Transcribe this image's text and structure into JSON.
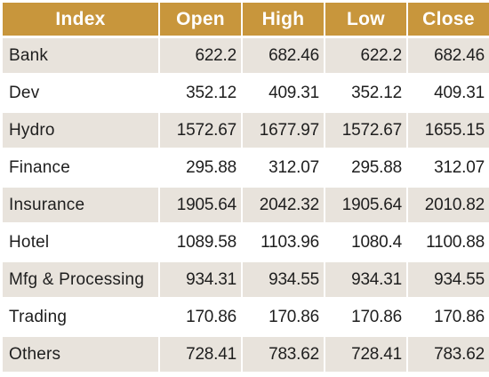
{
  "table": {
    "headers": [
      "Index",
      "Open",
      "High",
      "Low",
      "Close"
    ],
    "rows": [
      [
        "Bank",
        "622.2",
        "682.46",
        "622.2",
        "682.46"
      ],
      [
        "Dev",
        "352.12",
        "409.31",
        "352.12",
        "409.31"
      ],
      [
        "Hydro",
        "1572.67",
        "1677.97",
        "1572.67",
        "1655.15"
      ],
      [
        "Finance",
        "295.88",
        "312.07",
        "295.88",
        "312.07"
      ],
      [
        "Insurance",
        "1905.64",
        "2042.32",
        "1905.64",
        "2010.82"
      ],
      [
        "Hotel",
        "1089.58",
        "1103.96",
        "1080.4",
        "1100.88"
      ],
      [
        "Mfg & Processing",
        "934.31",
        "934.55",
        "934.31",
        "934.55"
      ],
      [
        "Trading",
        "170.86",
        "170.86",
        "170.86",
        "170.86"
      ],
      [
        "Others",
        "728.41",
        "783.62",
        "728.41",
        "783.62"
      ]
    ]
  },
  "colors": {
    "header_bg": "#c8963c",
    "header_text": "#ffffff",
    "row_shaded": "#e8e3dc",
    "row_plain": "#ffffff"
  }
}
